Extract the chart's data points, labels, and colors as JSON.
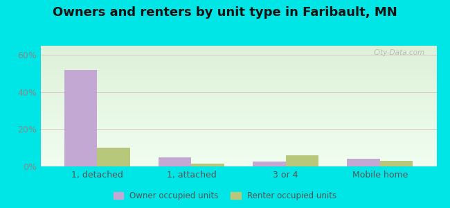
{
  "title": "Owners and renters by unit type in Faribault, MN",
  "categories": [
    "1, detached",
    "1, attached",
    "3 or 4",
    "Mobile home"
  ],
  "owner_values": [
    52,
    5,
    2.5,
    4
  ],
  "renter_values": [
    10,
    1.5,
    6,
    3
  ],
  "owner_color": "#c4a8d4",
  "renter_color": "#b8c87a",
  "ylim": [
    0,
    65
  ],
  "yticks": [
    0,
    20,
    40,
    60
  ],
  "ytick_labels": [
    "0%",
    "20%",
    "40%",
    "60%"
  ],
  "bg_top_color": "#ddf0d8",
  "bg_bottom_color": "#f0fdf0",
  "outer_background": "#00e5e5",
  "title_fontsize": 13,
  "bar_width": 0.35,
  "legend_owner": "Owner occupied units",
  "legend_renter": "Renter occupied units",
  "watermark": "City-Data.com",
  "grid_color": "#d4a0b0",
  "tick_color": "#888888",
  "xlabel_color": "#555555"
}
